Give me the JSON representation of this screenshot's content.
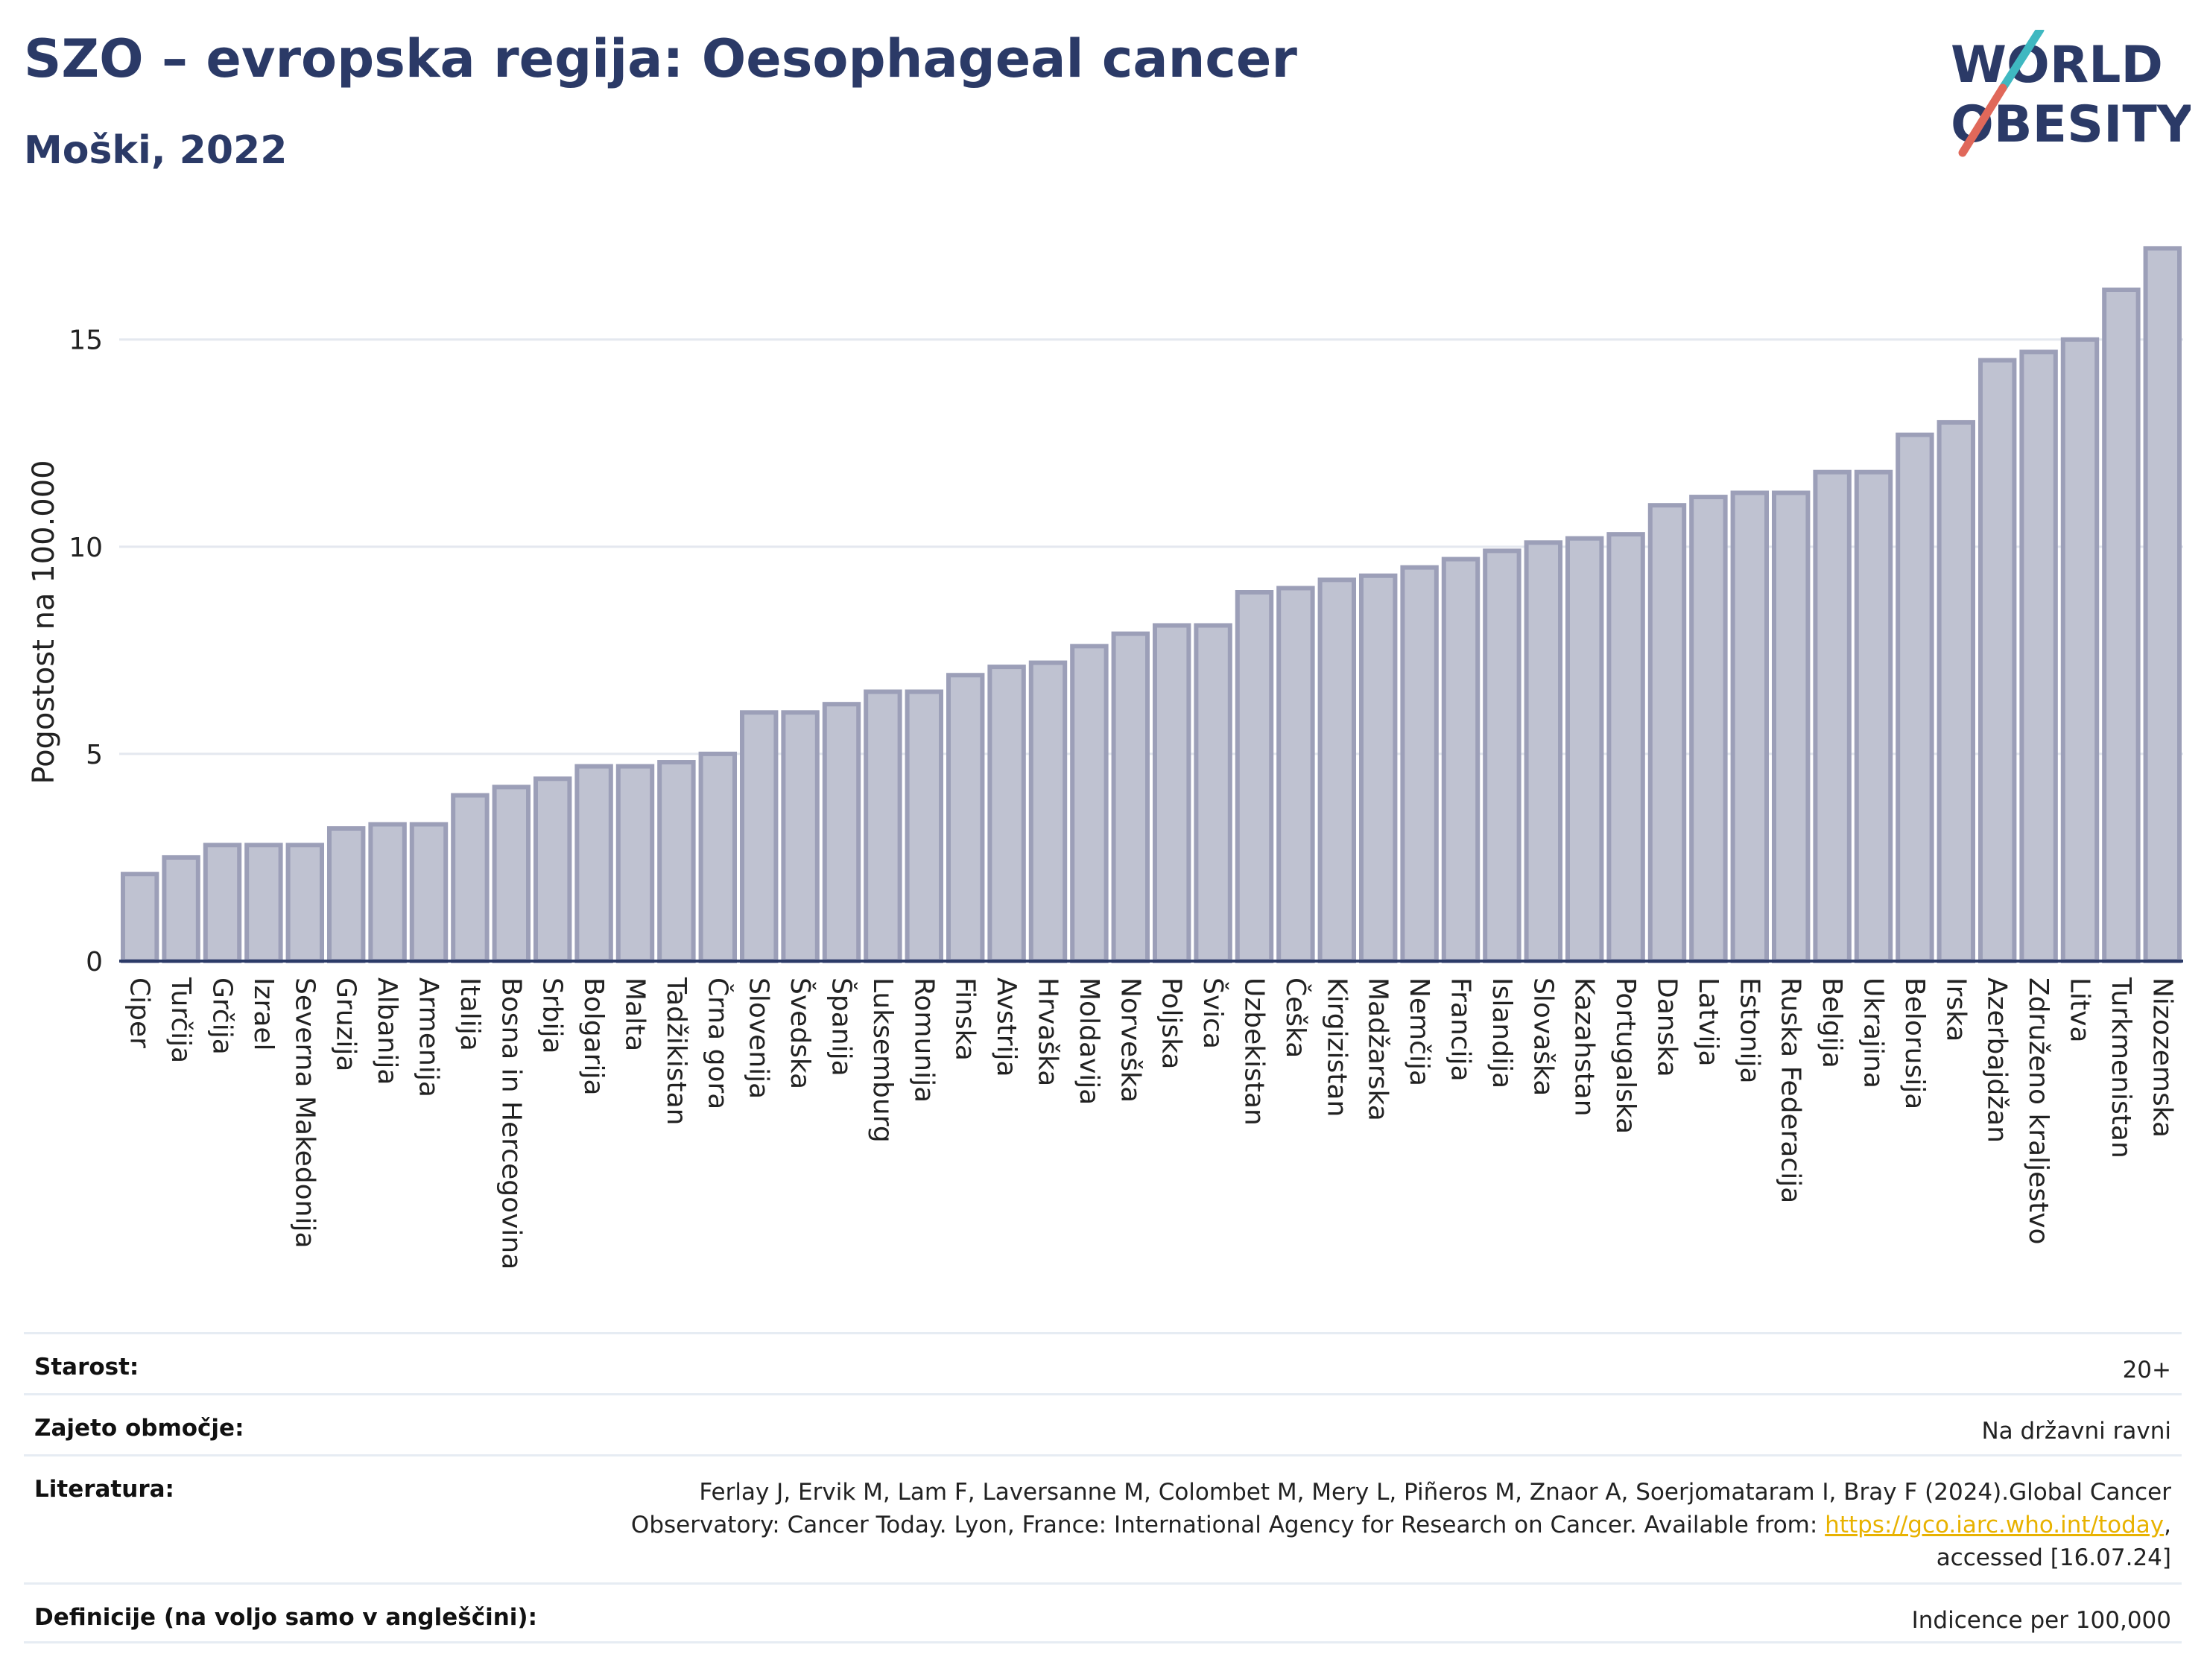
{
  "header": {
    "title": "SZO – evropska regija: Oesophageal cancer",
    "subtitle": "Moški, 2022"
  },
  "logo": {
    "line1": "WORLD",
    "line2": "OBESITY",
    "colors": {
      "text": "#2b3a67",
      "slash_top": "#3fb8c1",
      "slash_bottom": "#e0685a"
    }
  },
  "chart_data": {
    "type": "bar",
    "orientation": "vertical",
    "ylabel": "Pogostost na 100.000",
    "xlabel": "",
    "ylim": [
      0,
      17.8
    ],
    "yticks": [
      0,
      5,
      10,
      15
    ],
    "grid": true,
    "bar_color": "#bfc2d1",
    "bar_edge_color": "#9c9fb8",
    "categories": [
      "Ciper",
      "Turčija",
      "Grčija",
      "Izrael",
      "Severna Makedonija",
      "Gruzija",
      "Albanija",
      "Armenija",
      "Italija",
      "Bosna in Hercegovina",
      "Srbija",
      "Bolgarija",
      "Malta",
      "Tadžikistan",
      "Črna gora",
      "Slovenija",
      "Švedska",
      "Španija",
      "Luksemburg",
      "Romunija",
      "Finska",
      "Avstrija",
      "Hrvaška",
      "Moldavija",
      "Norveška",
      "Poljska",
      "Švica",
      "Uzbekistan",
      "Češka",
      "Kirgizistan",
      "Madžarska",
      "Nemčija",
      "Francija",
      "Islandija",
      "Slovaška",
      "Kazahstan",
      "Portugalska",
      "Danska",
      "Latvija",
      "Estonija",
      "Ruska Federacija",
      "Belgija",
      "Ukrajina",
      "Belorusija",
      "Irska",
      "Azerbajdžan",
      "Združeno kraljestvo",
      "Litva",
      "Turkmenistan",
      "Nizozemska"
    ],
    "values": [
      2.1,
      2.5,
      2.8,
      2.8,
      2.8,
      3.2,
      3.3,
      3.3,
      4.0,
      4.2,
      4.4,
      4.7,
      4.7,
      4.8,
      5.0,
      6.0,
      6.0,
      6.2,
      6.5,
      6.5,
      6.9,
      7.1,
      7.2,
      7.6,
      7.9,
      8.1,
      8.1,
      8.9,
      9.0,
      9.2,
      9.3,
      9.5,
      9.7,
      9.9,
      10.1,
      10.2,
      10.3,
      11.0,
      11.2,
      11.3,
      11.3,
      11.8,
      11.8,
      12.7,
      13.0,
      14.5,
      14.7,
      15.0,
      16.2,
      17.2
    ]
  },
  "meta": {
    "age_label": "Starost:",
    "age_value": "20+",
    "coverage_label": "Zajeto območje:",
    "coverage_value": "Na državni ravni",
    "ref_label": "Literatura:",
    "ref_line1": "Ferlay J, Ervik M, Lam F, Laversanne M, Colombet M, Mery L, Piñeros M, Znaor A, Soerjomataram I, Bray F (2024).Global Cancer",
    "ref_line2_pre": "Observatory: Cancer Today. Lyon, France: International Agency for Research on Cancer. Available from: ",
    "ref_link": "https://gco.iarc.who.int/today",
    "ref_line2_post": ",",
    "ref_line3": "accessed [16.07.24]",
    "def_label": "Definicije (na voljo samo v angleščini):",
    "def_value": "Indicence per 100,000"
  }
}
